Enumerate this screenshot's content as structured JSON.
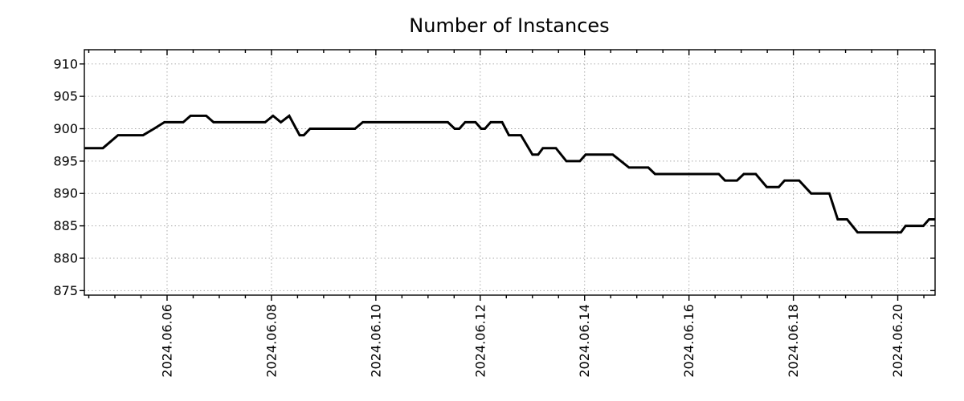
{
  "chart_data": {
    "type": "line",
    "title": "Number of Instances",
    "xlabel": "",
    "ylabel": "",
    "grid": true,
    "legend": false,
    "x_axis": {
      "unit": "day of June 2024",
      "range_days": [
        4.415,
        20.715
      ],
      "minor_tick_interval_days": 0.5,
      "major_ticks": [
        {
          "day": 6,
          "label": "2024.06.06"
        },
        {
          "day": 8,
          "label": "2024.06.08"
        },
        {
          "day": 10,
          "label": "2024.06.10"
        },
        {
          "day": 12,
          "label": "2024.06.12"
        },
        {
          "day": 14,
          "label": "2024.06.14"
        },
        {
          "day": 16,
          "label": "2024.06.16"
        },
        {
          "day": 18,
          "label": "2024.06.18"
        },
        {
          "day": 20,
          "label": "2024.06.20"
        }
      ]
    },
    "y_axis": {
      "ticks": [
        910,
        905,
        900,
        895,
        890,
        885,
        880,
        875
      ],
      "range": [
        874.3,
        912.2
      ]
    },
    "series": [
      {
        "name": "instances",
        "color": "#000000",
        "points_day_value": [
          [
            4.415,
            897
          ],
          [
            4.77,
            897
          ],
          [
            5.06,
            899
          ],
          [
            5.54,
            899
          ],
          [
            5.75,
            900
          ],
          [
            5.95,
            901
          ],
          [
            6.31,
            901
          ],
          [
            6.45,
            902
          ],
          [
            6.75,
            902
          ],
          [
            6.89,
            901
          ],
          [
            7.88,
            901
          ],
          [
            8.03,
            902
          ],
          [
            8.18,
            901
          ],
          [
            8.34,
            902
          ],
          [
            8.54,
            899
          ],
          [
            8.62,
            899
          ],
          [
            8.74,
            900
          ],
          [
            9.6,
            900
          ],
          [
            9.75,
            901
          ],
          [
            11.38,
            901
          ],
          [
            11.51,
            900
          ],
          [
            11.6,
            900
          ],
          [
            11.71,
            901
          ],
          [
            11.91,
            901
          ],
          [
            12.02,
            900
          ],
          [
            12.09,
            900
          ],
          [
            12.2,
            901
          ],
          [
            12.42,
            901
          ],
          [
            12.55,
            899
          ],
          [
            12.78,
            899
          ],
          [
            13.0,
            896
          ],
          [
            13.11,
            896
          ],
          [
            13.2,
            897
          ],
          [
            13.45,
            897
          ],
          [
            13.65,
            895
          ],
          [
            13.91,
            895
          ],
          [
            14.02,
            896
          ],
          [
            14.54,
            896
          ],
          [
            14.85,
            894
          ],
          [
            15.22,
            894
          ],
          [
            15.35,
            893
          ],
          [
            16.57,
            893
          ],
          [
            16.69,
            892
          ],
          [
            16.92,
            892
          ],
          [
            17.05,
            893
          ],
          [
            17.28,
            893
          ],
          [
            17.49,
            891
          ],
          [
            17.72,
            891
          ],
          [
            17.83,
            892
          ],
          [
            18.11,
            892
          ],
          [
            18.34,
            890
          ],
          [
            18.69,
            890
          ],
          [
            18.85,
            886
          ],
          [
            19.03,
            886
          ],
          [
            19.23,
            884
          ],
          [
            20.06,
            884
          ],
          [
            20.15,
            885
          ],
          [
            20.49,
            885
          ],
          [
            20.6,
            886
          ],
          [
            20.715,
            886
          ]
        ]
      }
    ],
    "style": {
      "line_color": "#000000",
      "grid_color": "#aaaaaa",
      "text_color": "#000000",
      "background": "#ffffff"
    }
  }
}
